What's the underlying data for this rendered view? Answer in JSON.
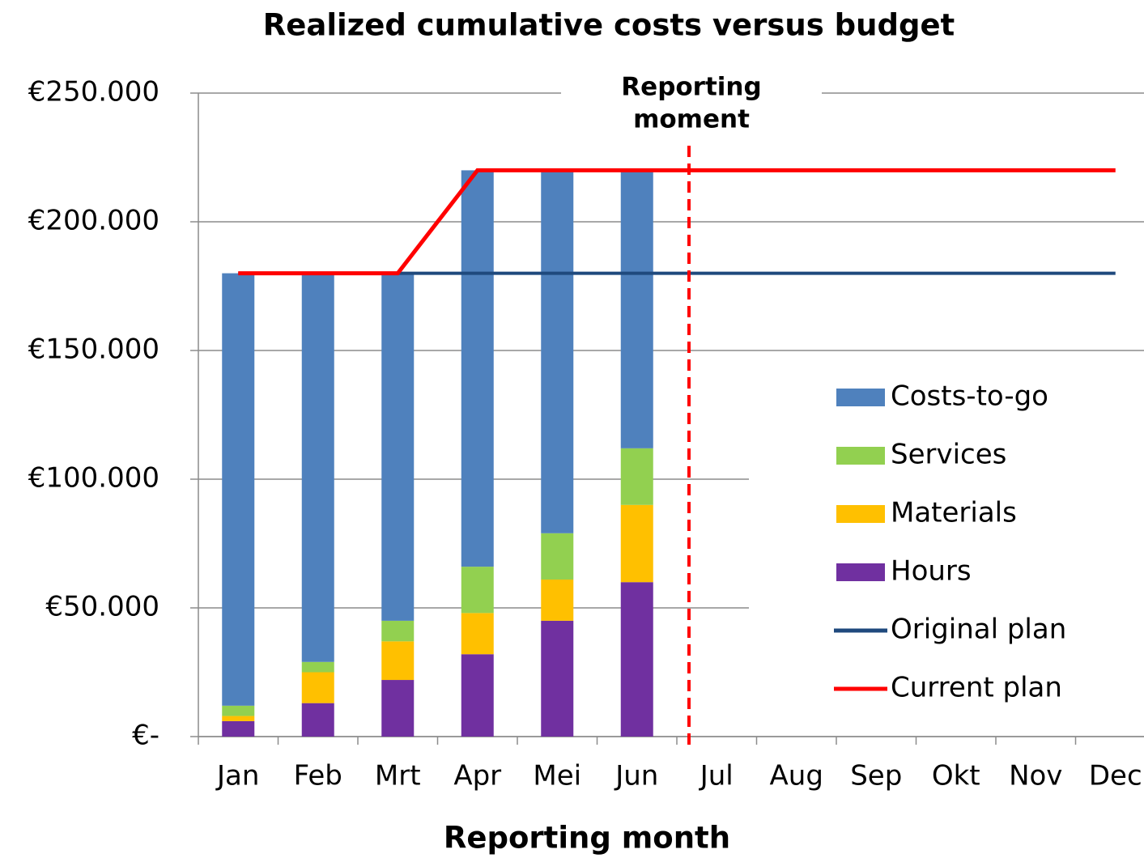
{
  "chart_data": {
    "type": "bar",
    "title": "Realized cumulative costs versus budget",
    "x_label": "Reporting month",
    "categories": [
      "Jan",
      "Feb",
      "Mrt",
      "Apr",
      "Mei",
      "Jun",
      "Jul",
      "Aug",
      "Sep",
      "Okt",
      "Nov",
      "Dec"
    ],
    "series": [
      {
        "name": "Hours",
        "type": "bar",
        "color": "#7030a0",
        "values": [
          6000,
          13000,
          22000,
          32000,
          45000,
          60000,
          null,
          null,
          null,
          null,
          null,
          null
        ]
      },
      {
        "name": "Materials",
        "type": "bar",
        "color": "#ffc000",
        "values": [
          2000,
          12000,
          15000,
          16000,
          16000,
          30000,
          null,
          null,
          null,
          null,
          null,
          null
        ]
      },
      {
        "name": "Services",
        "type": "bar",
        "color": "#92d050",
        "values": [
          4000,
          4000,
          8000,
          18000,
          18000,
          22000,
          null,
          null,
          null,
          null,
          null,
          null
        ]
      },
      {
        "name": "Costs-to-go",
        "type": "bar",
        "color": "#4f81bd",
        "values": [
          168000,
          151000,
          135000,
          154000,
          141000,
          108000,
          null,
          null,
          null,
          null,
          null,
          null
        ]
      },
      {
        "name": "Original plan",
        "type": "line",
        "color": "#1f497d",
        "values": [
          180000,
          180000,
          180000,
          180000,
          180000,
          180000,
          180000,
          180000,
          180000,
          180000,
          180000,
          180000
        ]
      },
      {
        "name": "Current plan",
        "type": "line",
        "color": "#ff0000",
        "values": [
          180000,
          180000,
          180000,
          220000,
          220000,
          220000,
          220000,
          220000,
          220000,
          220000,
          220000,
          220000
        ]
      }
    ],
    "legend_order": [
      3,
      2,
      1,
      0,
      4,
      5
    ],
    "annotation": {
      "lines": [
        "Reporting",
        "moment"
      ],
      "color": "#ff0000"
    },
    "ylim": [
      0,
      250000
    ],
    "yticks": [
      {
        "value": 0,
        "label": "€-"
      },
      {
        "value": 50000,
        "label": "€50.000"
      },
      {
        "value": 100000,
        "label": "€100.000"
      },
      {
        "value": 150000,
        "label": "€150.000"
      },
      {
        "value": 200000,
        "label": "€200.000"
      },
      {
        "value": 250000,
        "label": "€250.000"
      }
    ],
    "grid": true
  }
}
